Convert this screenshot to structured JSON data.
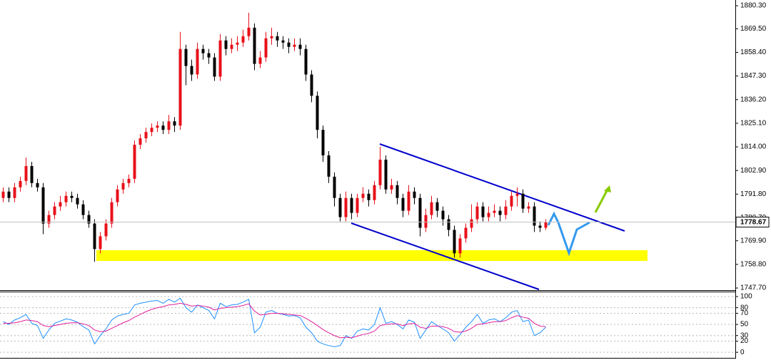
{
  "chart_data": [
    {
      "type": "candlestick",
      "up_color": "#e8101a",
      "down_color": "#000000",
      "open": [
        1790,
        1793,
        1790,
        1795,
        1798,
        1805,
        1797,
        1795,
        1778,
        1782,
        1786,
        1788,
        1791,
        1790,
        1787,
        1782,
        1778,
        1766,
        1772,
        1778,
        1788,
        1794,
        1797,
        1799,
        1815,
        1818,
        1821,
        1823,
        1824,
        1822,
        1826,
        1824,
        1860,
        1852,
        1848,
        1860,
        1858,
        1856,
        1847,
        1864,
        1860,
        1862,
        1863,
        1866,
        1870,
        1853,
        1856,
        1865,
        1866,
        1864,
        1863,
        1861,
        1862,
        1860,
        1848,
        1838,
        1822,
        1810,
        1800,
        1790,
        1781,
        1790,
        1783,
        1790,
        1792,
        1789,
        1796,
        1808,
        1794,
        1796,
        1790,
        1784,
        1793,
        1790,
        1776,
        1782,
        1788,
        1784,
        1780,
        1775,
        1764,
        1771,
        1776,
        1780,
        1786,
        1781,
        1783,
        1784,
        1782,
        1786,
        1791,
        1792,
        1785,
        1786,
        1777,
        1776
      ],
      "high": [
        1795,
        1795,
        1797,
        1800,
        1809,
        1807,
        1799,
        1797,
        1784,
        1788,
        1791,
        1793,
        1793,
        1792,
        1789,
        1784,
        1780,
        1774,
        1780,
        1790,
        1796,
        1799,
        1801,
        1817,
        1820,
        1823,
        1825,
        1826,
        1826,
        1829,
        1828,
        1868,
        1862,
        1855,
        1863,
        1862,
        1860,
        1858,
        1867,
        1866,
        1865,
        1866,
        1869,
        1877,
        1872,
        1859,
        1868,
        1870,
        1868,
        1866,
        1865,
        1865,
        1865,
        1862,
        1850,
        1840,
        1824,
        1812,
        1802,
        1792,
        1793,
        1792,
        1792,
        1795,
        1794,
        1798,
        1814,
        1810,
        1799,
        1798,
        1792,
        1796,
        1795,
        1792,
        1785,
        1791,
        1790,
        1786,
        1782,
        1777,
        1773,
        1778,
        1787,
        1788,
        1788,
        1786,
        1787,
        1786,
        1789,
        1793,
        1795,
        1794,
        1788,
        1788,
        1779,
        1780
      ],
      "low": [
        1788,
        1788,
        1788,
        1793,
        1796,
        1795,
        1793,
        1773,
        1776,
        1780,
        1784,
        1786,
        1788,
        1785,
        1780,
        1776,
        1760,
        1764,
        1770,
        1776,
        1786,
        1792,
        1795,
        1797,
        1813,
        1816,
        1819,
        1821,
        1820,
        1820,
        1821,
        1822,
        1843,
        1845,
        1846,
        1855,
        1853,
        1845,
        1845,
        1857,
        1858,
        1859,
        1861,
        1864,
        1850,
        1851,
        1854,
        1862,
        1861,
        1860,
        1858,
        1859,
        1857,
        1845,
        1835,
        1818,
        1807,
        1797,
        1786,
        1779,
        1779,
        1780,
        1781,
        1788,
        1786,
        1787,
        1794,
        1792,
        1792,
        1787,
        1781,
        1782,
        1787,
        1772,
        1774,
        1780,
        1781,
        1777,
        1772,
        1762,
        1762,
        1769,
        1774,
        1778,
        1779,
        1779,
        1781,
        1779,
        1780,
        1784,
        1786,
        1783,
        1783,
        1774,
        1774,
        1775
      ],
      "close": [
        1793,
        1790,
        1795,
        1798,
        1805,
        1797,
        1795,
        1778,
        1782,
        1786,
        1788,
        1791,
        1790,
        1787,
        1782,
        1778,
        1766,
        1772,
        1778,
        1788,
        1794,
        1797,
        1799,
        1815,
        1818,
        1821,
        1823,
        1824,
        1822,
        1826,
        1824,
        1860,
        1852,
        1848,
        1860,
        1858,
        1856,
        1847,
        1864,
        1860,
        1862,
        1863,
        1866,
        1870,
        1853,
        1856,
        1865,
        1866,
        1864,
        1863,
        1861,
        1862,
        1860,
        1848,
        1838,
        1822,
        1810,
        1800,
        1790,
        1781,
        1790,
        1783,
        1790,
        1792,
        1789,
        1796,
        1808,
        1794,
        1796,
        1790,
        1784,
        1793,
        1790,
        1776,
        1782,
        1788,
        1784,
        1780,
        1775,
        1764,
        1771,
        1776,
        1780,
        1786,
        1781,
        1783,
        1784,
        1782,
        1786,
        1791,
        1792,
        1785,
        1786,
        1777,
        1776,
        1778.67
      ],
      "ylim": [
        1746.7,
        1883
      ],
      "yticks": [
        {
          "value": 1880.3,
          "label": "1880.30"
        },
        {
          "value": 1869.5,
          "label": "1869.50"
        },
        {
          "value": 1858.4,
          "label": "1858.40"
        },
        {
          "value": 1847.3,
          "label": "1847.30"
        },
        {
          "value": 1836.2,
          "label": "1836.20"
        },
        {
          "value": 1825.1,
          "label": "1825.10"
        },
        {
          "value": 1814,
          "label": "1814.00"
        },
        {
          "value": 1802.9,
          "label": "1802.90"
        },
        {
          "value": 1791.8,
          "label": "1791.80"
        },
        {
          "value": 1780.7,
          "label": "1780.70"
        },
        {
          "value": 1769.9,
          "label": "1769.90"
        },
        {
          "value": 1758.8,
          "label": "1758.80"
        },
        {
          "value": 1747.7,
          "label": "1747.70"
        }
      ]
    },
    {
      "type": "line",
      "series": [
        {
          "color": "#1e90ff",
          "values": [
            55,
            50,
            58,
            62,
            68,
            52,
            48,
            25,
            40,
            52,
            56,
            60,
            58,
            54,
            46,
            40,
            15,
            30,
            42,
            58,
            65,
            68,
            70,
            85,
            88,
            90,
            92,
            93,
            88,
            95,
            90,
            97,
            80,
            72,
            85,
            80,
            75,
            60,
            88,
            82,
            85,
            86,
            90,
            95,
            35,
            45,
            72,
            75,
            70,
            68,
            65,
            66,
            62,
            45,
            35,
            20,
            15,
            12,
            10,
            12,
            30,
            25,
            38,
            42,
            40,
            50,
            80,
            52,
            55,
            50,
            42,
            58,
            54,
            25,
            40,
            55,
            48,
            42,
            35,
            20,
            32,
            45,
            55,
            68,
            52,
            58,
            60,
            55,
            62,
            72,
            75,
            55,
            58,
            30,
            35,
            45
          ]
        },
        {
          "color": "#e0209e",
          "values": [
            52,
            52,
            53,
            55,
            58,
            57,
            55,
            48,
            46,
            48,
            50,
            52,
            53,
            53,
            51,
            48,
            40,
            37,
            38,
            43,
            48,
            53,
            57,
            63,
            68,
            73,
            77,
            80,
            82,
            85,
            86,
            88,
            86,
            83,
            84,
            83,
            81,
            76,
            79,
            80,
            81,
            82,
            84,
            87,
            74,
            67,
            68,
            70,
            70,
            69,
            68,
            67,
            66,
            61,
            55,
            48,
            41,
            35,
            30,
            26,
            27,
            26,
            29,
            32,
            34,
            38,
            48,
            50,
            51,
            51,
            48,
            51,
            52,
            45,
            43,
            47,
            47,
            46,
            43,
            37,
            36,
            38,
            43,
            50,
            51,
            53,
            55,
            55,
            57,
            62,
            66,
            63,
            61,
            52,
            47,
            46
          ]
        }
      ],
      "ylim": [
        -10,
        109
      ],
      "yticks": [
        100,
        80,
        70,
        50,
        30,
        20,
        0
      ]
    }
  ]
}
